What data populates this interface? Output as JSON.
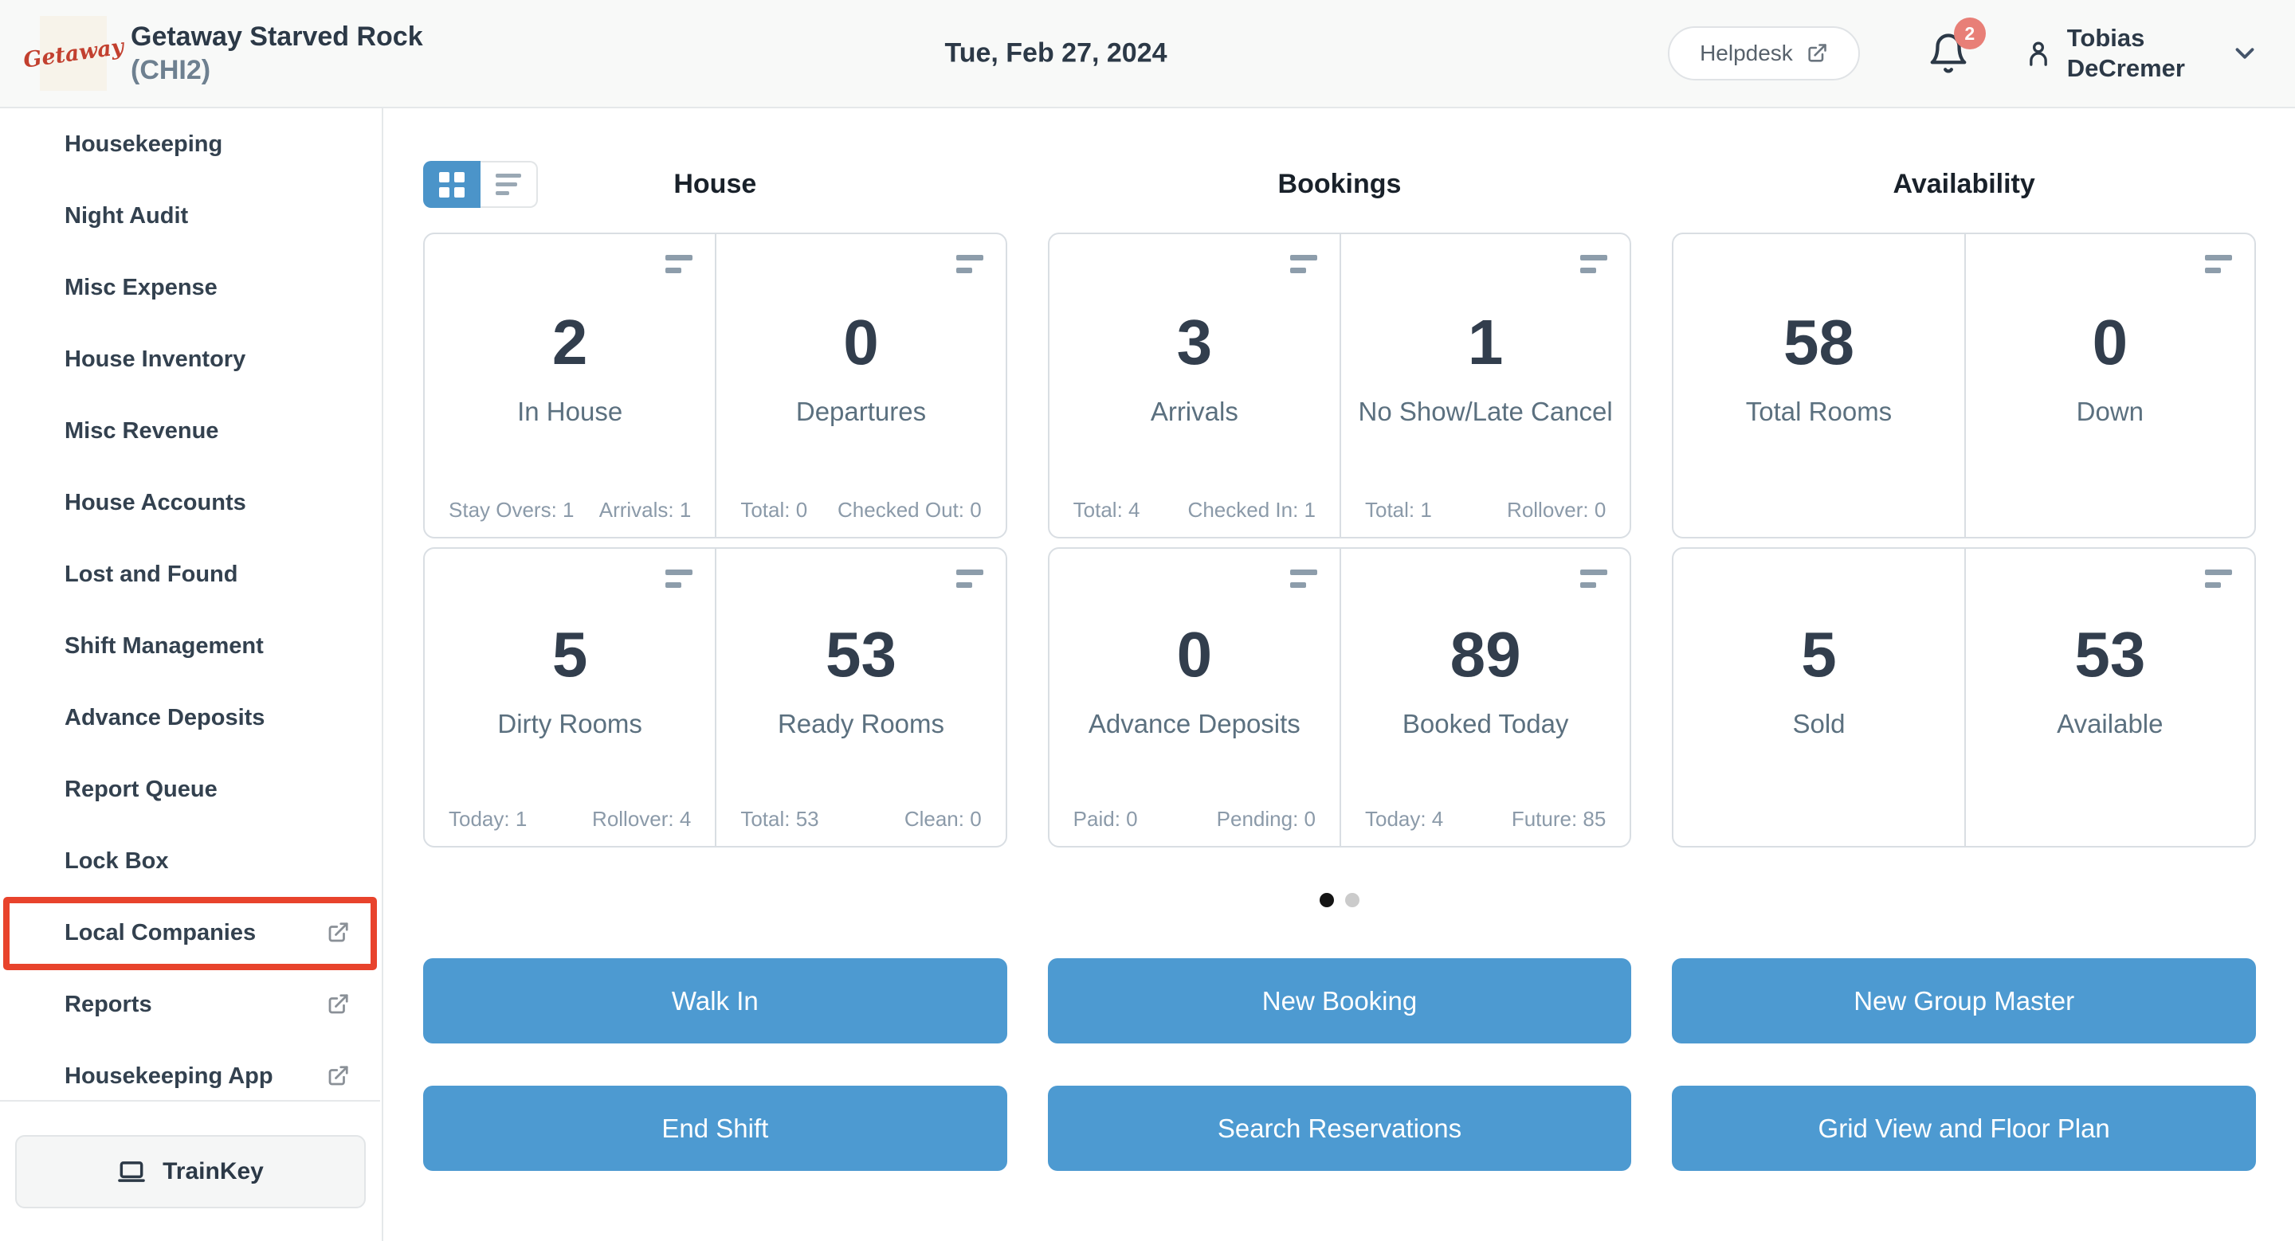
{
  "header": {
    "logo_text": "Getaway",
    "property_name": "Getaway Starved Rock",
    "property_code": "(CHI2)",
    "date": "Tue, Feb 27, 2024",
    "helpdesk_label": "Helpdesk",
    "notification_count": "2",
    "user_name_line1": "Tobias",
    "user_name_line2": "DeCremer"
  },
  "sidebar": {
    "items": [
      {
        "label": "Housekeeping",
        "external": false,
        "highlighted": false
      },
      {
        "label": "Night Audit",
        "external": false,
        "highlighted": false
      },
      {
        "label": "Misc Expense",
        "external": false,
        "highlighted": false
      },
      {
        "label": "House Inventory",
        "external": false,
        "highlighted": false
      },
      {
        "label": "Misc Revenue",
        "external": false,
        "highlighted": false
      },
      {
        "label": "House Accounts",
        "external": false,
        "highlighted": false
      },
      {
        "label": "Lost and Found",
        "external": false,
        "highlighted": false
      },
      {
        "label": "Shift Management",
        "external": false,
        "highlighted": false
      },
      {
        "label": "Advance Deposits",
        "external": false,
        "highlighted": false
      },
      {
        "label": "Report Queue",
        "external": false,
        "highlighted": false
      },
      {
        "label": "Lock Box",
        "external": false,
        "highlighted": false
      },
      {
        "label": "Local Companies",
        "external": true,
        "highlighted": true
      },
      {
        "label": "Reports",
        "external": true,
        "highlighted": false
      },
      {
        "label": "Housekeeping App",
        "external": true,
        "highlighted": false
      }
    ],
    "trainkey_label": "TrainKey"
  },
  "dashboard": {
    "sections": [
      {
        "title": "House",
        "cards": [
          {
            "value": "2",
            "label": "In House",
            "menu_icon": true,
            "stats": [
              {
                "label": "Stay Overs",
                "value": "1"
              },
              {
                "label": "Arrivals",
                "value": "1"
              }
            ]
          },
          {
            "value": "0",
            "label": "Departures",
            "menu_icon": true,
            "stats": [
              {
                "label": "Total",
                "value": "0"
              },
              {
                "label": "Checked Out",
                "value": "0"
              }
            ]
          },
          {
            "value": "5",
            "label": "Dirty Rooms",
            "menu_icon": true,
            "stats": [
              {
                "label": "Today",
                "value": "1"
              },
              {
                "label": "Rollover",
                "value": "4"
              }
            ]
          },
          {
            "value": "53",
            "label": "Ready Rooms",
            "menu_icon": true,
            "stats": [
              {
                "label": "Total",
                "value": "53"
              },
              {
                "label": "Clean",
                "value": "0"
              }
            ]
          }
        ]
      },
      {
        "title": "Bookings",
        "cards": [
          {
            "value": "3",
            "label": "Arrivals",
            "menu_icon": true,
            "stats": [
              {
                "label": "Total",
                "value": "4"
              },
              {
                "label": "Checked In",
                "value": "1"
              }
            ]
          },
          {
            "value": "1",
            "label": "No Show/Late Cancel",
            "menu_icon": true,
            "stats": [
              {
                "label": "Total",
                "value": "1"
              },
              {
                "label": "Rollover",
                "value": "0"
              }
            ]
          },
          {
            "value": "0",
            "label": "Advance Deposits",
            "menu_icon": true,
            "stats": [
              {
                "label": "Paid",
                "value": "0"
              },
              {
                "label": "Pending",
                "value": "0"
              }
            ]
          },
          {
            "value": "89",
            "label": "Booked Today",
            "menu_icon": true,
            "stats": [
              {
                "label": "Today",
                "value": "4"
              },
              {
                "label": "Future",
                "value": "85"
              }
            ]
          }
        ]
      },
      {
        "title": "Availability",
        "cards": [
          {
            "value": "58",
            "label": "Total Rooms",
            "menu_icon": false,
            "stats": []
          },
          {
            "value": "0",
            "label": "Down",
            "menu_icon": true,
            "stats": []
          },
          {
            "value": "5",
            "label": "Sold",
            "menu_icon": false,
            "stats": []
          },
          {
            "value": "53",
            "label": "Available",
            "menu_icon": true,
            "stats": []
          }
        ]
      }
    ],
    "pagination": {
      "dot_count": 2,
      "active_index": 0
    }
  },
  "actions": {
    "rows": [
      [
        "Walk In",
        "New Booking",
        "New Group Master"
      ],
      [
        "End Shift",
        "Search Reservations",
        "Grid View and Floor Plan"
      ]
    ]
  },
  "colors": {
    "accent_blue": "#4d9ad1",
    "toggle_blue": "#4b94c9",
    "annotation_red": "#e8432c",
    "badge_red": "#e87f77"
  }
}
